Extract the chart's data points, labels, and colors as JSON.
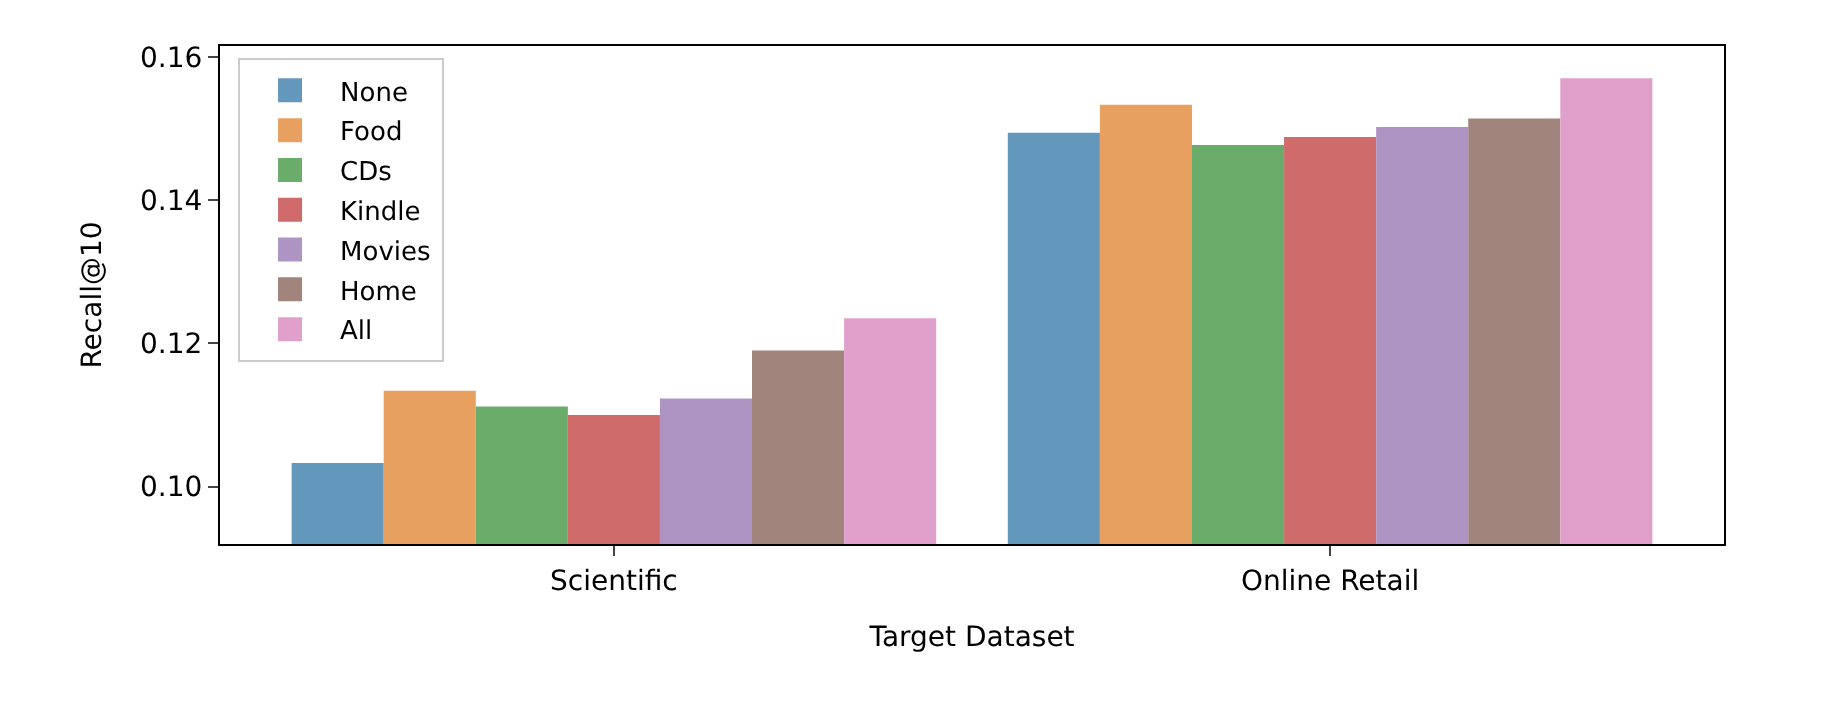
{
  "chart_data": {
    "type": "bar",
    "xlabel": "Target Dataset",
    "ylabel": "Recall@10",
    "categories": [
      "Scientific",
      "Online Retail"
    ],
    "series": [
      {
        "name": "None",
        "color": "#6497bc",
        "values": [
          0.1033,
          0.1494
        ]
      },
      {
        "name": "Food",
        "color": "#e8a060",
        "values": [
          0.1134,
          0.1533
        ]
      },
      {
        "name": "CDs",
        "color": "#6aad6a",
        "values": [
          0.1112,
          0.1477
        ]
      },
      {
        "name": "Kindle",
        "color": "#cf6b6b",
        "values": [
          0.11,
          0.1488
        ]
      },
      {
        "name": "Movies",
        "color": "#ae94c3",
        "values": [
          0.1123,
          0.1502
        ]
      },
      {
        "name": "Home",
        "color": "#a1847b",
        "values": [
          0.119,
          0.1514
        ]
      },
      {
        "name": "All",
        "color": "#e0a0cb",
        "values": [
          0.1235,
          0.157
        ]
      }
    ],
    "ylim": [
      0.092,
      0.1615
    ],
    "yticks": [
      {
        "value": 0.1,
        "label": "0.10"
      },
      {
        "value": 0.12,
        "label": "0.12"
      },
      {
        "value": 0.14,
        "label": "0.14"
      },
      {
        "value": 0.16,
        "label": "0.16"
      }
    ],
    "legend": "top left"
  }
}
